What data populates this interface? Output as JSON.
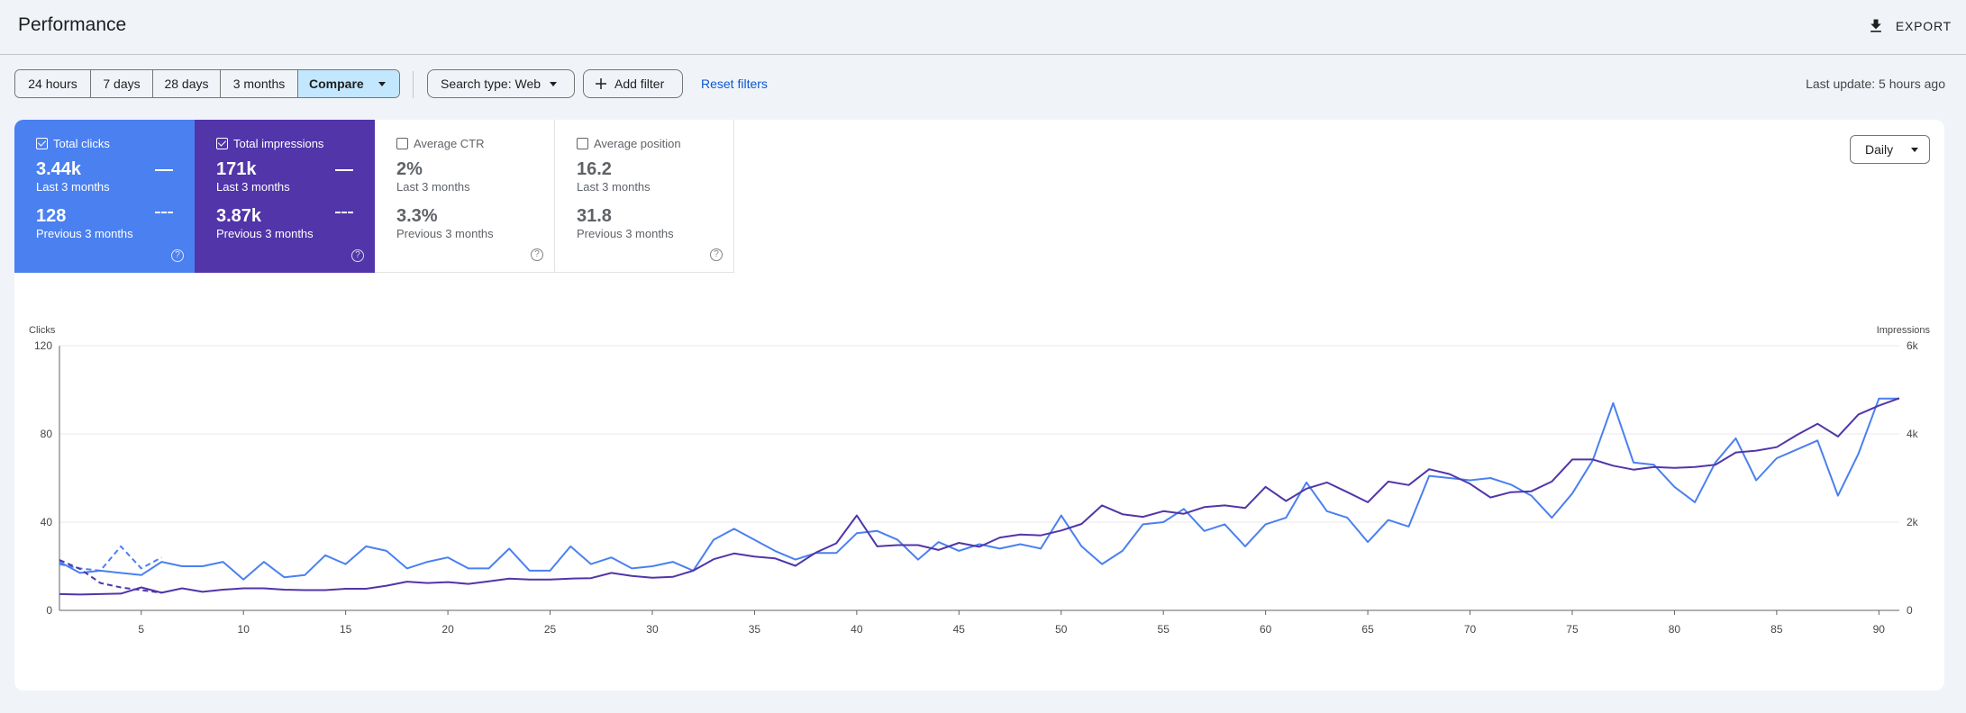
{
  "header": {
    "title": "Performance",
    "export_label": "EXPORT",
    "export_icon": "download-icon"
  },
  "filters": {
    "ranges": [
      "24 hours",
      "7 days",
      "28 days",
      "3 months"
    ],
    "compare_label": "Compare",
    "search_type_label": "Search type: Web",
    "add_filter_label": "Add filter",
    "reset_filters_label": "Reset filters",
    "last_update": "Last update: 5 hours ago"
  },
  "metrics": [
    {
      "name": "Total clicks",
      "checked": true,
      "value": "3.44k",
      "period": "Last 3 months",
      "prev_value": "128",
      "prev_period": "Previous 3 months",
      "color": "#4a80f0"
    },
    {
      "name": "Total impressions",
      "checked": true,
      "value": "171k",
      "period": "Last 3 months",
      "prev_value": "3.87k",
      "prev_period": "Previous 3 months",
      "color": "#5135a9"
    },
    {
      "name": "Average CTR",
      "checked": false,
      "value": "2%",
      "period": "Last 3 months",
      "prev_value": "3.3%",
      "prev_period": "Previous 3 months"
    },
    {
      "name": "Average position",
      "checked": false,
      "value": "16.2",
      "period": "Last 3 months",
      "prev_value": "31.8",
      "prev_period": "Previous 3 months"
    }
  ],
  "granularity": "Daily",
  "chart_data": {
    "type": "line",
    "ylabel": "Clicks",
    "y2label": "Impressions",
    "ylim": [
      0,
      120
    ],
    "y2lim": [
      0,
      6000
    ],
    "y_ticks": [
      "0",
      "40",
      "80",
      "120"
    ],
    "y2_ticks": [
      "0",
      "2k",
      "4k",
      "6k"
    ],
    "x_ticks": [
      5,
      10,
      15,
      20,
      25,
      30,
      35,
      40,
      45,
      50,
      55,
      60,
      65,
      70,
      75,
      80,
      85,
      90
    ],
    "xlim": [
      1,
      91
    ],
    "grid": true,
    "series": [
      {
        "name": "Total clicks",
        "axis": "left",
        "color": "#4a80f0",
        "style": "solid",
        "x_start": 1,
        "values": [
          22,
          17,
          18,
          17,
          16,
          22,
          20,
          20,
          22,
          14,
          22,
          15,
          16,
          25,
          21,
          29,
          27,
          19,
          22,
          24,
          19,
          19,
          28,
          18,
          18,
          29,
          21,
          24,
          19,
          20,
          22,
          18,
          32,
          37,
          32,
          27,
          23,
          26,
          26,
          35,
          36,
          32,
          23,
          31,
          27,
          30,
          28,
          30,
          28,
          43,
          29,
          21,
          27,
          39,
          40,
          46,
          36,
          39,
          29,
          39,
          42,
          58,
          45,
          42,
          31,
          41,
          38,
          61,
          60,
          59,
          60,
          57,
          52,
          42,
          53,
          68,
          94,
          67,
          66,
          56,
          49,
          67,
          78,
          59,
          69,
          73,
          77,
          52,
          71,
          96,
          96
        ]
      },
      {
        "name": "Total impressions",
        "axis": "right",
        "color": "#5135a9",
        "style": "solid",
        "x_start": 1,
        "values": [
          370,
          360,
          370,
          380,
          520,
          400,
          500,
          420,
          470,
          500,
          500,
          470,
          460,
          460,
          490,
          490,
          560,
          650,
          620,
          640,
          600,
          660,
          720,
          700,
          700,
          720,
          730,
          850,
          780,
          740,
          760,
          900,
          1160,
          1290,
          1220,
          1180,
          1010,
          1310,
          1520,
          2150,
          1450,
          1480,
          1480,
          1370,
          1530,
          1440,
          1650,
          1720,
          1700,
          1810,
          1960,
          2380,
          2180,
          2120,
          2250,
          2190,
          2340,
          2380,
          2320,
          2800,
          2480,
          2760,
          2900,
          2680,
          2450,
          2920,
          2840,
          3200,
          3090,
          2870,
          2560,
          2680,
          2700,
          2920,
          3420,
          3420,
          3280,
          3190,
          3250,
          3230,
          3250,
          3300,
          3580,
          3620,
          3700,
          3980,
          4230,
          3940,
          4440,
          4640,
          4810
        ]
      },
      {
        "name": "Total clicks (previous)",
        "axis": "left",
        "color": "#4a80f0",
        "style": "dashed",
        "x_start": 1,
        "values": [
          21,
          19,
          18,
          29,
          19,
          24
        ]
      },
      {
        "name": "Total impressions (previous)",
        "axis": "right",
        "color": "#5135a9",
        "style": "dashed",
        "x_start": 1,
        "values": [
          1140,
          940,
          620,
          520,
          460,
          400
        ]
      }
    ]
  }
}
